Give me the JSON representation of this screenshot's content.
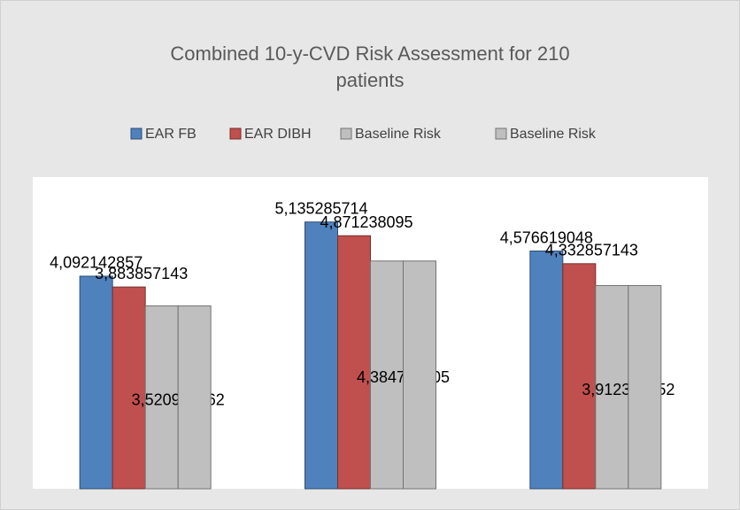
{
  "chart_data": {
    "type": "bar",
    "title": "Combined 10-y-CVD Risk Assessment for 210 patients",
    "categories": [
      null,
      null,
      null
    ],
    "series": [
      {
        "name": "EAR FB",
        "color": "#4f81bd",
        "values": [
          4.092142857,
          5.135285714,
          4.576619048
        ],
        "value_labels": [
          "4,092142857",
          "5,135285714",
          "4,576619048"
        ]
      },
      {
        "name": "EAR DIBH",
        "color": "#c0504d",
        "values": [
          3.883857143,
          4.871238095,
          4.332857143
        ],
        "value_labels": [
          "3,883857143",
          "4,871238095",
          "4,332857143"
        ]
      },
      {
        "name": "Baseline Risk",
        "color": "#bfbfbf",
        "values": [
          3.520904762,
          4.384761905,
          3.912380952
        ],
        "value_labels": [
          "3,520904762",
          "4,384761905",
          "3,912380952"
        ]
      },
      {
        "name": "Baseline Risk",
        "color": "#bfbfbf",
        "values": [
          3.520904762,
          4.384761905,
          3.912380952
        ]
      }
    ],
    "ylim": [
      0,
      6
    ]
  }
}
